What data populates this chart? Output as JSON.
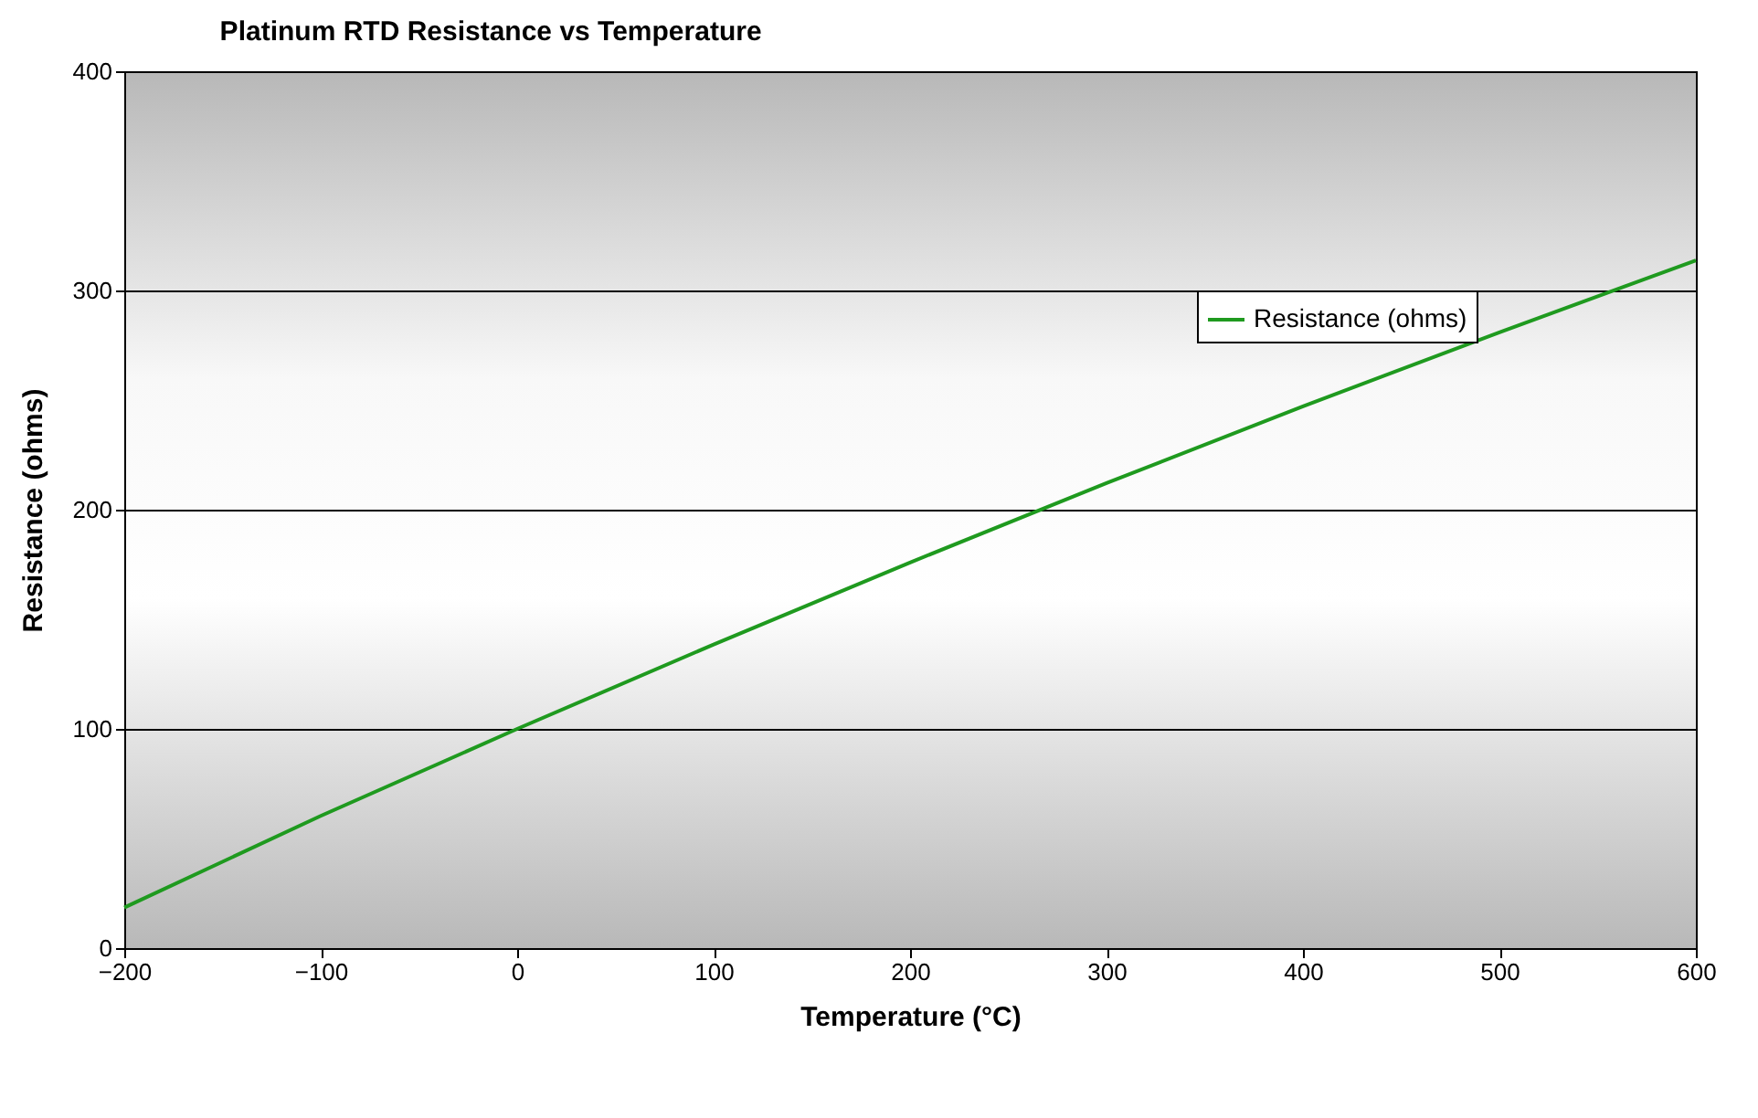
{
  "chart_data": {
    "type": "line",
    "title": "Platinum RTD Resistance vs Temperature",
    "xlabel": "Temperature (°C)",
    "ylabel": "Resistance (ohms)",
    "x": [
      -200,
      -100,
      0,
      100,
      200,
      300,
      400,
      500,
      600
    ],
    "series": [
      {
        "name": "Resistance (ohms)",
        "color": "#1f9a1f",
        "values": [
          18.5,
          60.3,
          100,
          138.5,
          175.9,
          212.1,
          247.1,
          280.9,
          313.7
        ]
      }
    ],
    "xlim": [
      -200,
      600
    ],
    "xticks": [
      -200,
      -100,
      0,
      100,
      200,
      300,
      400,
      500,
      600
    ],
    "ylim": [
      0,
      400
    ],
    "yticks": [
      0,
      100,
      200,
      300,
      400
    ],
    "grid": "y",
    "legend": "top right",
    "marker": "none",
    "line_style": "solid"
  }
}
